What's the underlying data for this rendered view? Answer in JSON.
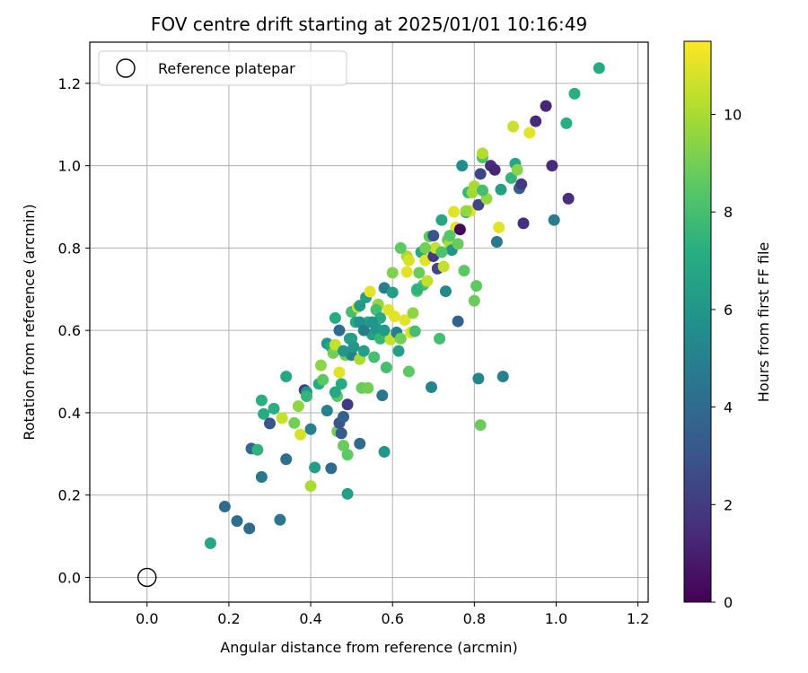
{
  "chart_data": {
    "type": "scatter",
    "title": "FOV centre drift starting at 2025/01/01 10:16:49",
    "xlabel": "Angular distance from reference (arcmin)",
    "ylabel": "Rotation from reference (arcmin)",
    "xlim": [
      -0.14,
      1.225
    ],
    "ylim": [
      -0.06,
      1.3
    ],
    "xticks": [
      "0.0",
      "0.2",
      "0.4",
      "0.6",
      "0.8",
      "1.0",
      "1.2"
    ],
    "yticks": [
      "0.0",
      "0.2",
      "0.4",
      "0.6",
      "0.8",
      "1.0",
      "1.2"
    ],
    "grid": true,
    "legend": {
      "placement": "top-left",
      "entries": [
        "Reference platepar"
      ]
    },
    "reference_point": {
      "x": 0.0,
      "y": 0.0
    },
    "colorbar": {
      "label": "Hours from first FF file",
      "range": [
        0,
        11.5
      ],
      "ticks": [
        "0",
        "2",
        "4",
        "6",
        "8",
        "10"
      ],
      "colormap": "viridis"
    },
    "points": [
      [
        0.155,
        0.083,
        6.8
      ],
      [
        0.19,
        0.172,
        4.0
      ],
      [
        0.22,
        0.137,
        4.2
      ],
      [
        0.25,
        0.119,
        4.0
      ],
      [
        0.255,
        0.313,
        3.8
      ],
      [
        0.27,
        0.31,
        7.4
      ],
      [
        0.28,
        0.43,
        7.2
      ],
      [
        0.28,
        0.244,
        4.6
      ],
      [
        0.285,
        0.397,
        7.0
      ],
      [
        0.3,
        0.374,
        3.0
      ],
      [
        0.31,
        0.41,
        7.2
      ],
      [
        0.325,
        0.14,
        4.5
      ],
      [
        0.33,
        0.387,
        10.5
      ],
      [
        0.34,
        0.488,
        6.8
      ],
      [
        0.34,
        0.287,
        4.2
      ],
      [
        0.36,
        0.375,
        9.0
      ],
      [
        0.37,
        0.416,
        9.5
      ],
      [
        0.375,
        0.347,
        10.8
      ],
      [
        0.385,
        0.455,
        2.0
      ],
      [
        0.39,
        0.45,
        6.0
      ],
      [
        0.39,
        0.44,
        7.5
      ],
      [
        0.4,
        0.222,
        10.0
      ],
      [
        0.4,
        0.36,
        5.0
      ],
      [
        0.41,
        0.267,
        6.4
      ],
      [
        0.42,
        0.47,
        7.0
      ],
      [
        0.425,
        0.515,
        9.5
      ],
      [
        0.43,
        0.48,
        8.5
      ],
      [
        0.44,
        0.568,
        6.0
      ],
      [
        0.44,
        0.405,
        5.0
      ],
      [
        0.45,
        0.265,
        4.0
      ],
      [
        0.45,
        0.56,
        7.0
      ],
      [
        0.455,
        0.545,
        9.0
      ],
      [
        0.46,
        0.565,
        10.5
      ],
      [
        0.465,
        0.355,
        9.0
      ],
      [
        0.465,
        0.44,
        8.6
      ],
      [
        0.47,
        0.375,
        3.0
      ],
      [
        0.47,
        0.498,
        11.0
      ],
      [
        0.475,
        0.35,
        3.2
      ],
      [
        0.475,
        0.47,
        7.0
      ],
      [
        0.48,
        0.39,
        3.6
      ],
      [
        0.48,
        0.32,
        8.8
      ],
      [
        0.485,
        0.54,
        9.0
      ],
      [
        0.49,
        0.42,
        2.0
      ],
      [
        0.49,
        0.298,
        8.6
      ],
      [
        0.49,
        0.203,
        6.5
      ],
      [
        0.495,
        0.58,
        6.8
      ],
      [
        0.5,
        0.54,
        5.0
      ],
      [
        0.5,
        0.645,
        8.0
      ],
      [
        0.505,
        0.56,
        6.0
      ],
      [
        0.51,
        0.62,
        7.0
      ],
      [
        0.515,
        0.656,
        10.5
      ],
      [
        0.52,
        0.325,
        4.0
      ],
      [
        0.52,
        0.53,
        10.0
      ],
      [
        0.525,
        0.46,
        8.8
      ],
      [
        0.53,
        0.55,
        6.5
      ],
      [
        0.535,
        0.68,
        6.4
      ],
      [
        0.54,
        0.62,
        7.2
      ],
      [
        0.54,
        0.46,
        9.0
      ],
      [
        0.545,
        0.694,
        11.0
      ],
      [
        0.55,
        0.59,
        6.6
      ],
      [
        0.555,
        0.535,
        8.0
      ],
      [
        0.56,
        0.606,
        6.0
      ],
      [
        0.565,
        0.663,
        9.6
      ],
      [
        0.57,
        0.58,
        7.6
      ],
      [
        0.575,
        0.442,
        4.6
      ],
      [
        0.58,
        0.305,
        6.0
      ],
      [
        0.58,
        0.703,
        4.8
      ],
      [
        0.585,
        0.51,
        8.0
      ],
      [
        0.59,
        0.65,
        11.0
      ],
      [
        0.595,
        0.578,
        10.5
      ],
      [
        0.6,
        0.692,
        6.4
      ],
      [
        0.605,
        0.634,
        11.0
      ],
      [
        0.61,
        0.595,
        5.0
      ],
      [
        0.615,
        0.55,
        6.5
      ],
      [
        0.62,
        0.58,
        9.0
      ],
      [
        0.63,
        0.625,
        11.0
      ],
      [
        0.635,
        0.78,
        10.0
      ],
      [
        0.635,
        0.742,
        11.0
      ],
      [
        0.64,
        0.5,
        8.6
      ],
      [
        0.645,
        0.595,
        10.8
      ],
      [
        0.65,
        0.642,
        9.5
      ],
      [
        0.655,
        0.598,
        8.0
      ],
      [
        0.66,
        0.695,
        8.4
      ],
      [
        0.665,
        0.74,
        8.8
      ],
      [
        0.67,
        0.79,
        7.0
      ],
      [
        0.675,
        0.71,
        8.0
      ],
      [
        0.68,
        0.77,
        11.0
      ],
      [
        0.685,
        0.72,
        10.5
      ],
      [
        0.69,
        0.828,
        8.6
      ],
      [
        0.695,
        0.462,
        5.2
      ],
      [
        0.7,
        0.78,
        2.0
      ],
      [
        0.705,
        0.8,
        10.5
      ],
      [
        0.71,
        0.75,
        2.4
      ],
      [
        0.715,
        0.58,
        8.0
      ],
      [
        0.72,
        0.868,
        6.8
      ],
      [
        0.725,
        0.755,
        10.5
      ],
      [
        0.73,
        0.695,
        5.4
      ],
      [
        0.735,
        0.82,
        8.6
      ],
      [
        0.74,
        0.81,
        10.0
      ],
      [
        0.745,
        0.795,
        6.0
      ],
      [
        0.75,
        0.888,
        11.0
      ],
      [
        0.755,
        0.85,
        11.0
      ],
      [
        0.76,
        0.622,
        3.6
      ],
      [
        0.765,
        0.845,
        0.2
      ],
      [
        0.77,
        1.0,
        5.6
      ],
      [
        0.775,
        0.745,
        8.5
      ],
      [
        0.78,
        0.887,
        6.6
      ],
      [
        0.785,
        0.935,
        7.6
      ],
      [
        0.79,
        0.89,
        11.0
      ],
      [
        0.795,
        0.935,
        9.8
      ],
      [
        0.8,
        0.672,
        8.8
      ],
      [
        0.805,
        0.708,
        8.6
      ],
      [
        0.81,
        0.905,
        2.4
      ],
      [
        0.81,
        0.483,
        5.2
      ],
      [
        0.815,
        0.37,
        8.8
      ],
      [
        0.815,
        0.98,
        2.4
      ],
      [
        0.82,
        1.02,
        8.2
      ],
      [
        0.82,
        1.03,
        10.2
      ],
      [
        0.83,
        0.92,
        9.6
      ],
      [
        0.84,
        1.0,
        1.6
      ],
      [
        0.85,
        0.99,
        1.2
      ],
      [
        0.855,
        0.815,
        4.6
      ],
      [
        0.86,
        0.85,
        11.0
      ],
      [
        0.865,
        0.942,
        6.5
      ],
      [
        0.87,
        0.488,
        5.0
      ],
      [
        0.89,
        0.97,
        7.5
      ],
      [
        0.895,
        1.095,
        10.6
      ],
      [
        0.9,
        1.005,
        6.8
      ],
      [
        0.905,
        0.99,
        9.4
      ],
      [
        0.91,
        0.945,
        3.6
      ],
      [
        0.915,
        0.955,
        2.0
      ],
      [
        0.92,
        0.86,
        1.6
      ],
      [
        0.935,
        1.08,
        11.0
      ],
      [
        0.95,
        1.108,
        1.4
      ],
      [
        0.975,
        1.145,
        1.2
      ],
      [
        0.99,
        1.0,
        1.4
      ],
      [
        0.995,
        0.868,
        4.8
      ],
      [
        1.025,
        1.103,
        7.2
      ],
      [
        1.03,
        0.92,
        1.5
      ],
      [
        1.045,
        1.175,
        7.2
      ],
      [
        1.105,
        1.237,
        7.0
      ],
      [
        0.52,
        0.62,
        5.8
      ],
      [
        0.56,
        0.65,
        8.0
      ],
      [
        0.58,
        0.6,
        6.2
      ],
      [
        0.62,
        0.8,
        8.6
      ],
      [
        0.66,
        0.7,
        7.4
      ],
      [
        0.7,
        0.83,
        3.0
      ],
      [
        0.72,
        0.79,
        8.2
      ],
      [
        0.74,
        0.83,
        8.4
      ],
      [
        0.76,
        0.81,
        8.8
      ],
      [
        0.78,
        0.89,
        9.6
      ],
      [
        0.8,
        0.95,
        10.0
      ],
      [
        0.82,
        0.94,
        8.0
      ],
      [
        0.48,
        0.55,
        6.0
      ],
      [
        0.5,
        0.58,
        6.4
      ],
      [
        0.53,
        0.6,
        4.8
      ],
      [
        0.57,
        0.63,
        7.0
      ],
      [
        0.6,
        0.74,
        9.2
      ],
      [
        0.64,
        0.77,
        10.8
      ],
      [
        0.68,
        0.8,
        9.0
      ],
      [
        0.46,
        0.63,
        7.0
      ],
      [
        0.47,
        0.6,
        4.0
      ],
      [
        0.52,
        0.66,
        6.2
      ],
      [
        0.55,
        0.62,
        6.0
      ],
      [
        0.46,
        0.45,
        6.8
      ]
    ]
  }
}
